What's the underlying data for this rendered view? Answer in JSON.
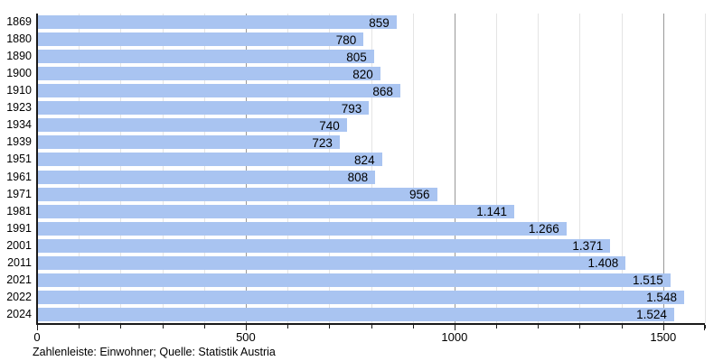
{
  "chart_data": {
    "type": "bar",
    "orientation": "horizontal",
    "title": "",
    "xlabel": "",
    "ylabel": "",
    "categories": [
      "1869",
      "1880",
      "1890",
      "1900",
      "1910",
      "1923",
      "1934",
      "1939",
      "1951",
      "1961",
      "1971",
      "1981",
      "1991",
      "2001",
      "2011",
      "2021",
      "2022",
      "2024"
    ],
    "values": [
      859,
      780,
      805,
      820,
      868,
      793,
      740,
      723,
      824,
      808,
      956,
      1141,
      1266,
      1371,
      1408,
      1515,
      1548,
      1524
    ],
    "value_labels": [
      "859",
      "780",
      "805",
      "820",
      "868",
      "793",
      "740",
      "723",
      "824",
      "808",
      "956",
      "1.141",
      "1.266",
      "1.371",
      "1.408",
      "1.515",
      "1.548",
      "1.524"
    ],
    "xlim": [
      0,
      1600
    ],
    "x_major_ticks": [
      0,
      500,
      1000,
      1500
    ],
    "x_tick_labels": [
      "0",
      "500",
      "1000",
      "1500"
    ],
    "x_minor_step": 100,
    "grid": true,
    "legend": "none",
    "caption": "Zahlenleiste: Einwohner; Quelle: Statistik Austria",
    "colors": {
      "bar": "#a9c4f1",
      "major_grid": "#999999",
      "minor_grid": "#e4e4e4",
      "axis": "#1a1a1a",
      "text": "#000000",
      "background": "#ffffff"
    }
  }
}
